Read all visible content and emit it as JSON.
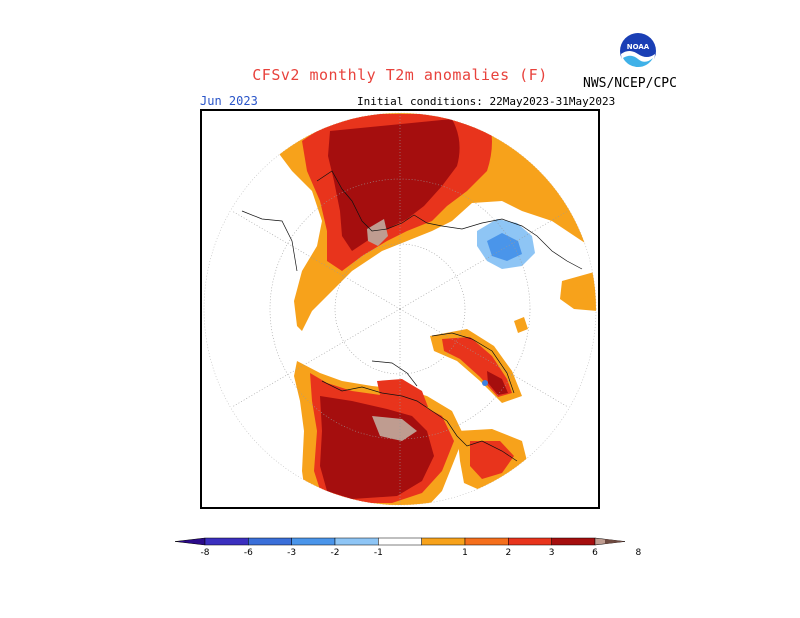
{
  "header": {
    "title": "CFSv2 monthly T2m anomalies (F)",
    "agency": "NWS/NCEP/CPC",
    "logo_text": "NOAA",
    "month": "Jun 2023",
    "initial_conditions": "Initial conditions: 22May2023-31May2023"
  },
  "colors": {
    "title": "#e8423c",
    "month": "#2a55c9",
    "level_1": "#f7a21b",
    "level_2": "#f56f1c",
    "level_3": "#e8341c",
    "level_6": "#a50e0e",
    "level_8": "#bf9c90",
    "level_neg1": "#8ec5f5",
    "level_neg2": "#5aa7ee",
    "level_neg3": "#3d83e0"
  },
  "colorbar": {
    "tick_labels": [
      "-8",
      "-6",
      "-3",
      "-2",
      "-1",
      "1",
      "2",
      "3",
      "6",
      "8"
    ],
    "segments": [
      {
        "from": "-inf",
        "to": -8,
        "color": "#2b0a8a"
      },
      {
        "from": -8,
        "to": -6,
        "color": "#3b2fbf"
      },
      {
        "from": -6,
        "to": -3,
        "color": "#3a6fd9"
      },
      {
        "from": -3,
        "to": -2,
        "color": "#4a95ea"
      },
      {
        "from": -2,
        "to": -1,
        "color": "#8ec5f5"
      },
      {
        "from": -1,
        "to": 1,
        "color": "#ffffff"
      },
      {
        "from": 1,
        "to": 2,
        "color": "#f7a21b"
      },
      {
        "from": 2,
        "to": 3,
        "color": "#f56f1c"
      },
      {
        "from": 3,
        "to": 6,
        "color": "#e8341c"
      },
      {
        "from": 6,
        "to": 8,
        "color": "#a50e0e"
      },
      {
        "from": 8,
        "to": "inf",
        "color": "#bf9c90"
      }
    ],
    "extend_high_color": "#6e4a40"
  }
}
